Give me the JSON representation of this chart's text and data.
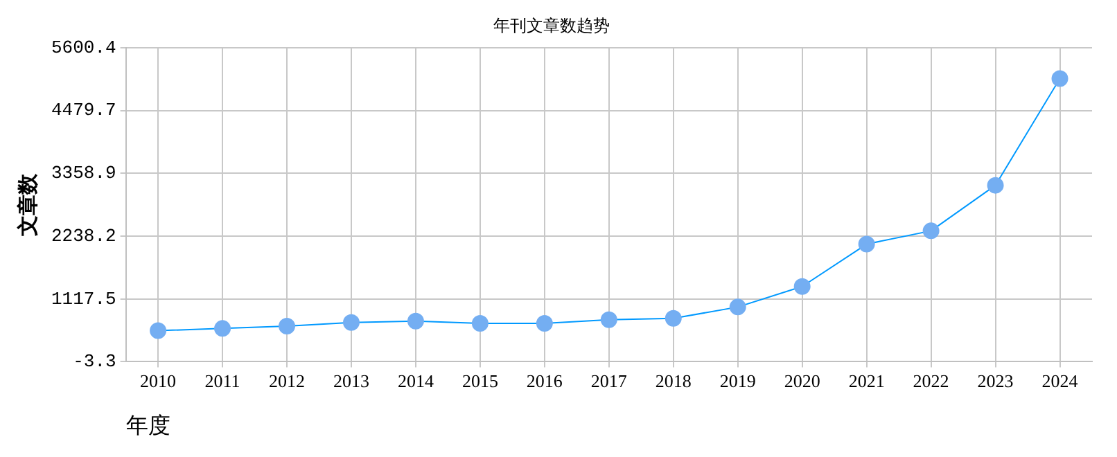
{
  "chart_data": {
    "type": "line",
    "title": "年刊文章数趋势",
    "xlabel": "年度",
    "ylabel": "文章数",
    "categories": [
      "2010",
      "2011",
      "2012",
      "2013",
      "2014",
      "2015",
      "2016",
      "2017",
      "2018",
      "2019",
      "2020",
      "2021",
      "2022",
      "2023",
      "2024"
    ],
    "series": [
      {
        "color": "#0099ff",
        "values": [
          551,
          590,
          631,
          697,
          721,
          680,
          680,
          746,
          770,
          973,
          1339,
          2095,
          2332,
          3144,
          5048
        ]
      }
    ],
    "ylim": [
      -3.3,
      5600.4
    ],
    "yticks": [
      -3.3,
      1117.5,
      2238.2,
      3358.9,
      4479.7,
      5600.4
    ],
    "grid": true,
    "marker": "circle",
    "legend": false
  }
}
